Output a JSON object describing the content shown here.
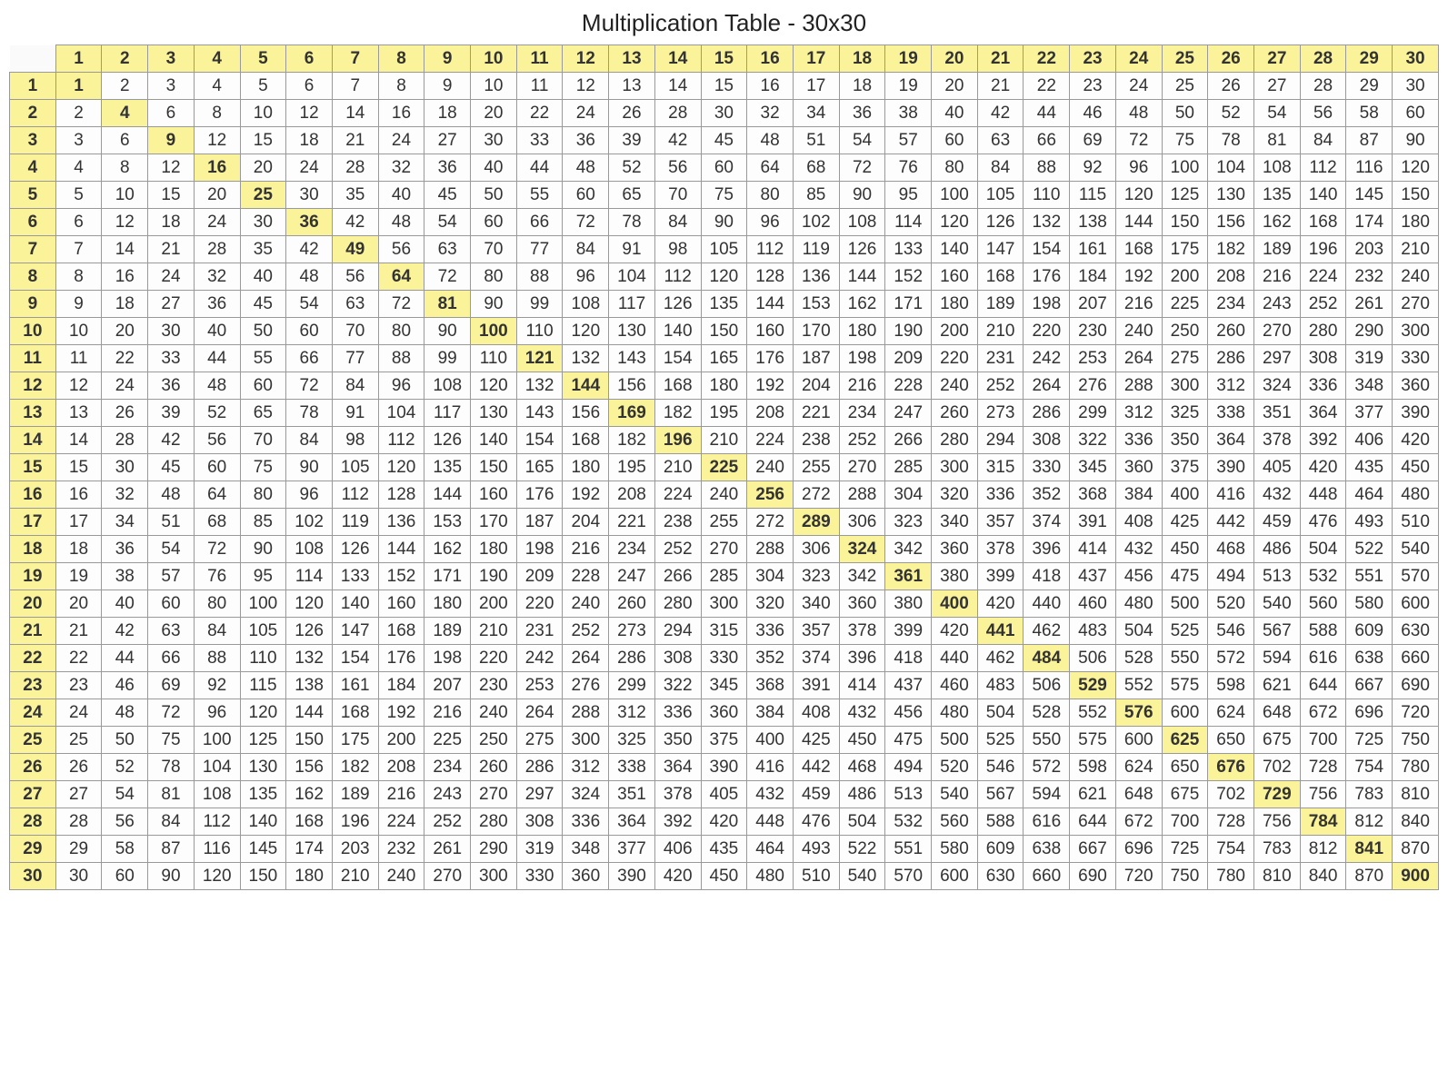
{
  "title": "Multiplication Table - 30x30",
  "table": {
    "type": "table",
    "size": 30,
    "header_bg": "#faf39a",
    "diagonal_bg": "#faf39a",
    "cell_bg": "#fdfdfd",
    "border_color": "#999999",
    "text_color": "#333333",
    "title_fontsize": 26,
    "cell_fontsize": 19,
    "font_family": "Arial",
    "columns": [
      1,
      2,
      3,
      4,
      5,
      6,
      7,
      8,
      9,
      10,
      11,
      12,
      13,
      14,
      15,
      16,
      17,
      18,
      19,
      20,
      21,
      22,
      23,
      24,
      25,
      26,
      27,
      28,
      29,
      30
    ],
    "rows_index": [
      1,
      2,
      3,
      4,
      5,
      6,
      7,
      8,
      9,
      10,
      11,
      12,
      13,
      14,
      15,
      16,
      17,
      18,
      19,
      20,
      21,
      22,
      23,
      24,
      25,
      26,
      27,
      28,
      29,
      30
    ],
    "rows": [
      [
        1,
        2,
        3,
        4,
        5,
        6,
        7,
        8,
        9,
        10,
        11,
        12,
        13,
        14,
        15,
        16,
        17,
        18,
        19,
        20,
        21,
        22,
        23,
        24,
        25,
        26,
        27,
        28,
        29,
        30
      ],
      [
        2,
        4,
        6,
        8,
        10,
        12,
        14,
        16,
        18,
        20,
        22,
        24,
        26,
        28,
        30,
        32,
        34,
        36,
        38,
        40,
        42,
        44,
        46,
        48,
        50,
        52,
        54,
        56,
        58,
        60
      ],
      [
        3,
        6,
        9,
        12,
        15,
        18,
        21,
        24,
        27,
        30,
        33,
        36,
        39,
        42,
        45,
        48,
        51,
        54,
        57,
        60,
        63,
        66,
        69,
        72,
        75,
        78,
        81,
        84,
        87,
        90
      ],
      [
        4,
        8,
        12,
        16,
        20,
        24,
        28,
        32,
        36,
        40,
        44,
        48,
        52,
        56,
        60,
        64,
        68,
        72,
        76,
        80,
        84,
        88,
        92,
        96,
        100,
        104,
        108,
        112,
        116,
        120
      ],
      [
        5,
        10,
        15,
        20,
        25,
        30,
        35,
        40,
        45,
        50,
        55,
        60,
        65,
        70,
        75,
        80,
        85,
        90,
        95,
        100,
        105,
        110,
        115,
        120,
        125,
        130,
        135,
        140,
        145,
        150
      ],
      [
        6,
        12,
        18,
        24,
        30,
        36,
        42,
        48,
        54,
        60,
        66,
        72,
        78,
        84,
        90,
        96,
        102,
        108,
        114,
        120,
        126,
        132,
        138,
        144,
        150,
        156,
        162,
        168,
        174,
        180
      ],
      [
        7,
        14,
        21,
        28,
        35,
        42,
        49,
        56,
        63,
        70,
        77,
        84,
        91,
        98,
        105,
        112,
        119,
        126,
        133,
        140,
        147,
        154,
        161,
        168,
        175,
        182,
        189,
        196,
        203,
        210
      ],
      [
        8,
        16,
        24,
        32,
        40,
        48,
        56,
        64,
        72,
        80,
        88,
        96,
        104,
        112,
        120,
        128,
        136,
        144,
        152,
        160,
        168,
        176,
        184,
        192,
        200,
        208,
        216,
        224,
        232,
        240
      ],
      [
        9,
        18,
        27,
        36,
        45,
        54,
        63,
        72,
        81,
        90,
        99,
        108,
        117,
        126,
        135,
        144,
        153,
        162,
        171,
        180,
        189,
        198,
        207,
        216,
        225,
        234,
        243,
        252,
        261,
        270
      ],
      [
        10,
        20,
        30,
        40,
        50,
        60,
        70,
        80,
        90,
        100,
        110,
        120,
        130,
        140,
        150,
        160,
        170,
        180,
        190,
        200,
        210,
        220,
        230,
        240,
        250,
        260,
        270,
        280,
        290,
        300
      ],
      [
        11,
        22,
        33,
        44,
        55,
        66,
        77,
        88,
        99,
        110,
        121,
        132,
        143,
        154,
        165,
        176,
        187,
        198,
        209,
        220,
        231,
        242,
        253,
        264,
        275,
        286,
        297,
        308,
        319,
        330
      ],
      [
        12,
        24,
        36,
        48,
        60,
        72,
        84,
        96,
        108,
        120,
        132,
        144,
        156,
        168,
        180,
        192,
        204,
        216,
        228,
        240,
        252,
        264,
        276,
        288,
        300,
        312,
        324,
        336,
        348,
        360
      ],
      [
        13,
        26,
        39,
        52,
        65,
        78,
        91,
        104,
        117,
        130,
        143,
        156,
        169,
        182,
        195,
        208,
        221,
        234,
        247,
        260,
        273,
        286,
        299,
        312,
        325,
        338,
        351,
        364,
        377,
        390
      ],
      [
        14,
        28,
        42,
        56,
        70,
        84,
        98,
        112,
        126,
        140,
        154,
        168,
        182,
        196,
        210,
        224,
        238,
        252,
        266,
        280,
        294,
        308,
        322,
        336,
        350,
        364,
        378,
        392,
        406,
        420
      ],
      [
        15,
        30,
        45,
        60,
        75,
        90,
        105,
        120,
        135,
        150,
        165,
        180,
        195,
        210,
        225,
        240,
        255,
        270,
        285,
        300,
        315,
        330,
        345,
        360,
        375,
        390,
        405,
        420,
        435,
        450
      ],
      [
        16,
        32,
        48,
        64,
        80,
        96,
        112,
        128,
        144,
        160,
        176,
        192,
        208,
        224,
        240,
        256,
        272,
        288,
        304,
        320,
        336,
        352,
        368,
        384,
        400,
        416,
        432,
        448,
        464,
        480
      ],
      [
        17,
        34,
        51,
        68,
        85,
        102,
        119,
        136,
        153,
        170,
        187,
        204,
        221,
        238,
        255,
        272,
        289,
        306,
        323,
        340,
        357,
        374,
        391,
        408,
        425,
        442,
        459,
        476,
        493,
        510
      ],
      [
        18,
        36,
        54,
        72,
        90,
        108,
        126,
        144,
        162,
        180,
        198,
        216,
        234,
        252,
        270,
        288,
        306,
        324,
        342,
        360,
        378,
        396,
        414,
        432,
        450,
        468,
        486,
        504,
        522,
        540
      ],
      [
        19,
        38,
        57,
        76,
        95,
        114,
        133,
        152,
        171,
        190,
        209,
        228,
        247,
        266,
        285,
        304,
        323,
        342,
        361,
        380,
        399,
        418,
        437,
        456,
        475,
        494,
        513,
        532,
        551,
        570
      ],
      [
        20,
        40,
        60,
        80,
        100,
        120,
        140,
        160,
        180,
        200,
        220,
        240,
        260,
        280,
        300,
        320,
        340,
        360,
        380,
        400,
        420,
        440,
        460,
        480,
        500,
        520,
        540,
        560,
        580,
        600
      ],
      [
        21,
        42,
        63,
        84,
        105,
        126,
        147,
        168,
        189,
        210,
        231,
        252,
        273,
        294,
        315,
        336,
        357,
        378,
        399,
        420,
        441,
        462,
        483,
        504,
        525,
        546,
        567,
        588,
        609,
        630
      ],
      [
        22,
        44,
        66,
        88,
        110,
        132,
        154,
        176,
        198,
        220,
        242,
        264,
        286,
        308,
        330,
        352,
        374,
        396,
        418,
        440,
        462,
        484,
        506,
        528,
        550,
        572,
        594,
        616,
        638,
        660
      ],
      [
        23,
        46,
        69,
        92,
        115,
        138,
        161,
        184,
        207,
        230,
        253,
        276,
        299,
        322,
        345,
        368,
        391,
        414,
        437,
        460,
        483,
        506,
        529,
        552,
        575,
        598,
        621,
        644,
        667,
        690
      ],
      [
        24,
        48,
        72,
        96,
        120,
        144,
        168,
        192,
        216,
        240,
        264,
        288,
        312,
        336,
        360,
        384,
        408,
        432,
        456,
        480,
        504,
        528,
        552,
        576,
        600,
        624,
        648,
        672,
        696,
        720
      ],
      [
        25,
        50,
        75,
        100,
        125,
        150,
        175,
        200,
        225,
        250,
        275,
        300,
        325,
        350,
        375,
        400,
        425,
        450,
        475,
        500,
        525,
        550,
        575,
        600,
        625,
        650,
        675,
        700,
        725,
        750
      ],
      [
        26,
        52,
        78,
        104,
        130,
        156,
        182,
        208,
        234,
        260,
        286,
        312,
        338,
        364,
        390,
        416,
        442,
        468,
        494,
        520,
        546,
        572,
        598,
        624,
        650,
        676,
        702,
        728,
        754,
        780
      ],
      [
        27,
        54,
        81,
        108,
        135,
        162,
        189,
        216,
        243,
        270,
        297,
        324,
        351,
        378,
        405,
        432,
        459,
        486,
        513,
        540,
        567,
        594,
        621,
        648,
        675,
        702,
        729,
        756,
        783,
        810
      ],
      [
        28,
        56,
        84,
        112,
        140,
        168,
        196,
        224,
        252,
        280,
        308,
        336,
        364,
        392,
        420,
        448,
        476,
        504,
        532,
        560,
        588,
        616,
        644,
        672,
        700,
        728,
        756,
        784,
        812,
        840
      ],
      [
        29,
        58,
        87,
        116,
        145,
        174,
        203,
        232,
        261,
        290,
        319,
        348,
        377,
        406,
        435,
        464,
        493,
        522,
        551,
        580,
        609,
        638,
        667,
        696,
        725,
        754,
        783,
        812,
        841,
        870
      ],
      [
        30,
        60,
        90,
        120,
        150,
        180,
        210,
        240,
        270,
        300,
        330,
        360,
        390,
        420,
        450,
        480,
        510,
        540,
        570,
        600,
        630,
        660,
        690,
        720,
        750,
        780,
        810,
        840,
        870,
        900
      ]
    ]
  }
}
